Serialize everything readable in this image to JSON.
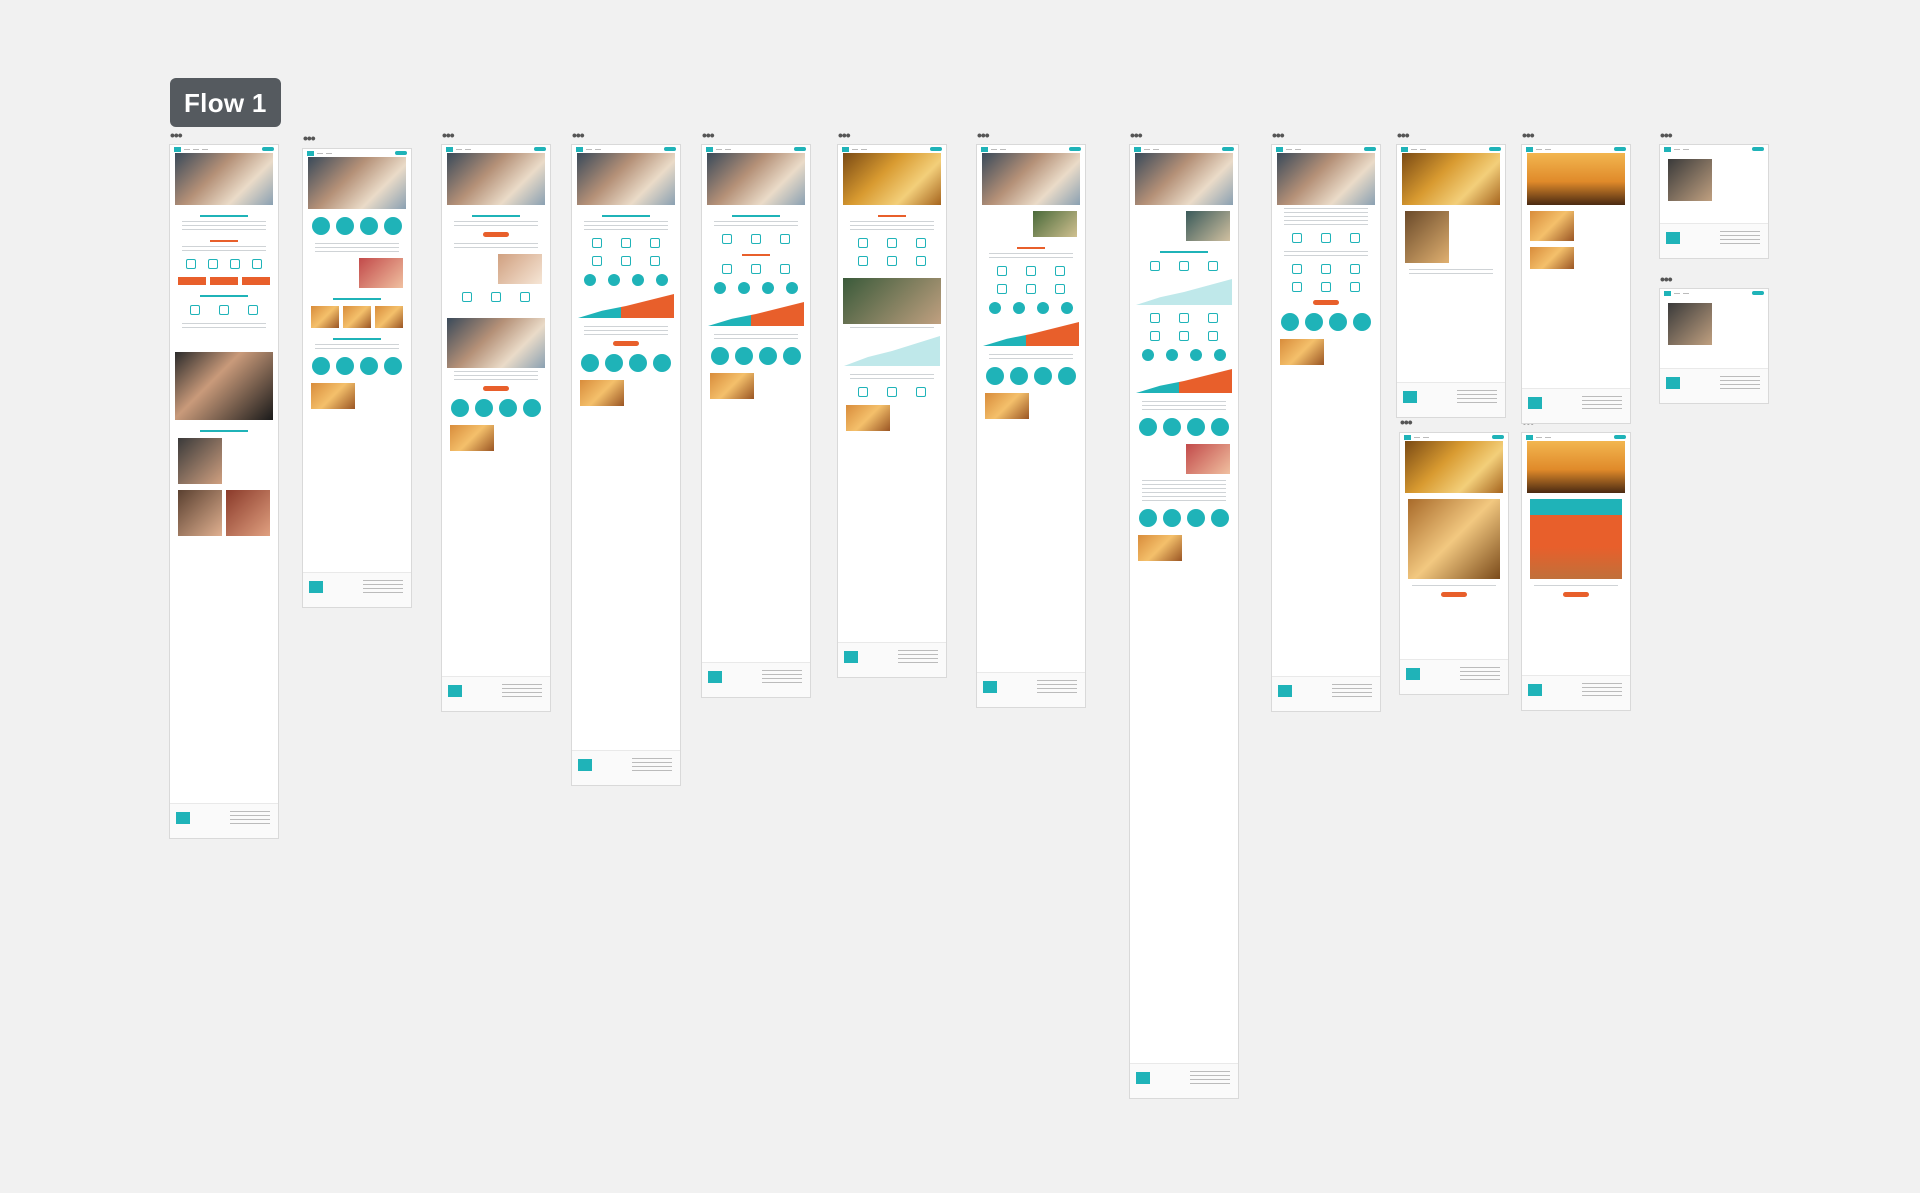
{
  "canvas": {
    "flow_label": "Flow 1",
    "frame_menu_glyph": "•••",
    "frame_count": 15
  },
  "colors": {
    "canvas_bg": "#f1f1f1",
    "label_bg": "#555a5f",
    "teal": "#1fb3b8",
    "orange": "#e85f2b",
    "red": "#d93a2b"
  }
}
